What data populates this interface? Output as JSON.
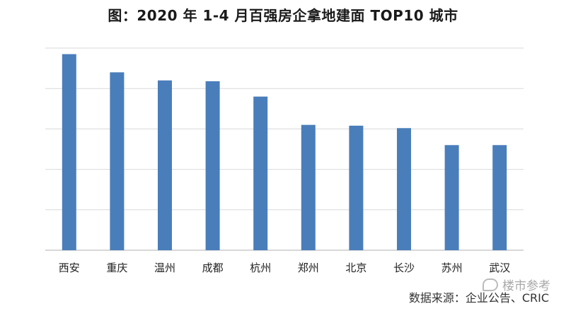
{
  "title": "图：2020 年 1-4 月百强房企拿地建面 TOP10 城市",
  "source": "数据来源：企业公告、CRIC",
  "watermark": "楼市参考",
  "colors": {
    "bar": "#4a7ebb",
    "grid": "#d9d9d9",
    "axis": "#bfbfbf"
  },
  "chart_data": {
    "type": "bar",
    "title": "图：2020 年 1-4 月百强房企拿地建面 TOP10 城市",
    "categories": [
      "西安",
      "重庆",
      "温州",
      "成都",
      "杭州",
      "郑州",
      "北京",
      "长沙",
      "苏州",
      "武汉"
    ],
    "values": [
      4.85,
      4.4,
      4.2,
      4.18,
      3.8,
      3.1,
      3.08,
      3.02,
      2.6,
      2.6
    ],
    "ylim": [
      0,
      5
    ],
    "y_tick_labels_shown": false,
    "grid": true,
    "xlabel": "",
    "ylabel": ""
  }
}
